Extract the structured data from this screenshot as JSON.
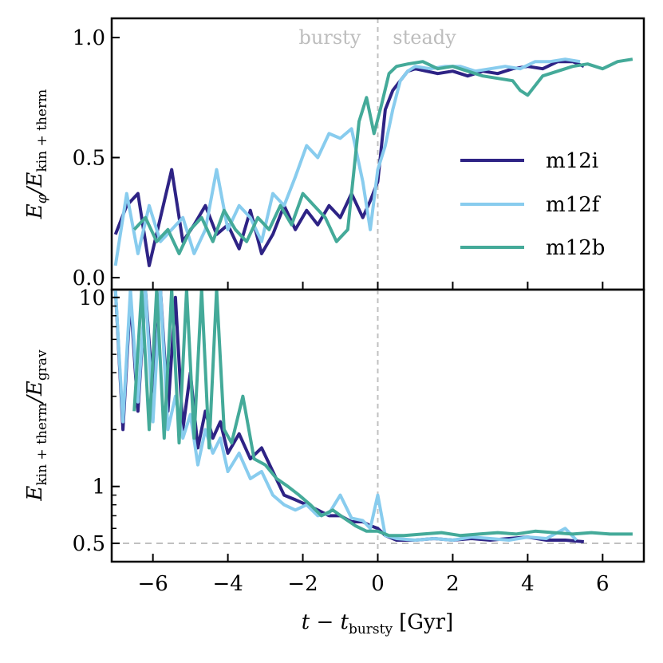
{
  "chart_data": [
    {
      "type": "line",
      "panel": "top",
      "ylabel_main": "E",
      "ylabel_sub1": "φ",
      "ylabel_slash": "/E",
      "ylabel_sub2": "kin + therm",
      "xlim": [
        -7.1,
        7.1
      ],
      "ylim": [
        -0.05,
        1.08
      ],
      "yscale": "linear",
      "yticks": [
        0.0,
        0.5,
        1.0
      ],
      "ytick_labels": [
        "0.0",
        "0.5",
        "1.0"
      ],
      "annotations": [
        {
          "text": "bursty",
          "x": -0.45,
          "y": 1.0
        },
        {
          "text": "steady",
          "x": 0.4,
          "y": 1.0
        }
      ],
      "vline_x": 0,
      "legend": {
        "placement": "right",
        "entries": [
          "m12i",
          "m12f",
          "m12b"
        ]
      },
      "series": [
        {
          "name": "m12i",
          "color": "#2e2385",
          "x": [
            -7.0,
            -6.7,
            -6.4,
            -6.1,
            -5.8,
            -5.5,
            -5.2,
            -4.9,
            -4.6,
            -4.3,
            -4.0,
            -3.7,
            -3.4,
            -3.1,
            -2.8,
            -2.5,
            -2.2,
            -1.9,
            -1.6,
            -1.3,
            -1.0,
            -0.7,
            -0.4,
            -0.2,
            0.0,
            0.2,
            0.4,
            0.6,
            0.8,
            1.0,
            1.3,
            1.6,
            2.0,
            2.4,
            2.8,
            3.2,
            3.6,
            4.0,
            4.4,
            4.8,
            5.2,
            5.5
          ],
          "values": [
            0.18,
            0.3,
            0.35,
            0.05,
            0.25,
            0.45,
            0.15,
            0.22,
            0.3,
            0.18,
            0.22,
            0.12,
            0.28,
            0.1,
            0.18,
            0.3,
            0.2,
            0.28,
            0.22,
            0.3,
            0.25,
            0.35,
            0.25,
            0.32,
            0.4,
            0.7,
            0.78,
            0.82,
            0.86,
            0.87,
            0.86,
            0.85,
            0.86,
            0.84,
            0.86,
            0.85,
            0.87,
            0.88,
            0.87,
            0.9,
            0.9,
            0.88
          ]
        },
        {
          "name": "m12f",
          "color": "#88ccee",
          "x": [
            -7.0,
            -6.7,
            -6.4,
            -6.1,
            -5.8,
            -5.5,
            -5.2,
            -4.9,
            -4.6,
            -4.3,
            -4.0,
            -3.7,
            -3.4,
            -3.1,
            -2.8,
            -2.5,
            -2.2,
            -1.9,
            -1.6,
            -1.3,
            -1.0,
            -0.7,
            -0.4,
            -0.2,
            0.0,
            0.2,
            0.4,
            0.6,
            0.8,
            1.0,
            1.4,
            1.8,
            2.2,
            2.6,
            3.0,
            3.4,
            3.8,
            4.2,
            4.6,
            5.0,
            5.4
          ],
          "values": [
            0.05,
            0.35,
            0.1,
            0.3,
            0.15,
            0.2,
            0.25,
            0.1,
            0.2,
            0.45,
            0.2,
            0.3,
            0.25,
            0.15,
            0.35,
            0.3,
            0.42,
            0.55,
            0.5,
            0.6,
            0.58,
            0.62,
            0.4,
            0.2,
            0.45,
            0.55,
            0.7,
            0.82,
            0.86,
            0.88,
            0.87,
            0.88,
            0.88,
            0.86,
            0.87,
            0.88,
            0.87,
            0.9,
            0.9,
            0.91,
            0.9
          ]
        },
        {
          "name": "m12b",
          "color": "#44aa99",
          "x": [
            -6.5,
            -6.2,
            -5.9,
            -5.6,
            -5.3,
            -5.0,
            -4.7,
            -4.4,
            -4.1,
            -3.8,
            -3.5,
            -3.2,
            -2.9,
            -2.6,
            -2.3,
            -2.0,
            -1.7,
            -1.4,
            -1.1,
            -0.8,
            -0.5,
            -0.3,
            -0.1,
            0.1,
            0.3,
            0.5,
            0.8,
            1.2,
            1.6,
            2.0,
            2.4,
            2.8,
            3.2,
            3.6,
            3.8,
            4.0,
            4.4,
            4.8,
            5.2,
            5.6,
            6.0,
            6.4,
            6.8
          ],
          "values": [
            0.2,
            0.25,
            0.15,
            0.2,
            0.1,
            0.2,
            0.25,
            0.15,
            0.28,
            0.2,
            0.15,
            0.25,
            0.2,
            0.3,
            0.22,
            0.35,
            0.3,
            0.25,
            0.15,
            0.2,
            0.65,
            0.75,
            0.6,
            0.72,
            0.85,
            0.88,
            0.89,
            0.9,
            0.87,
            0.88,
            0.86,
            0.84,
            0.83,
            0.82,
            0.78,
            0.76,
            0.84,
            0.86,
            0.88,
            0.89,
            0.87,
            0.9,
            0.91
          ]
        }
      ]
    },
    {
      "type": "line",
      "panel": "bottom",
      "ylabel_main": "E",
      "ylabel_sub1": "kin + therm",
      "ylabel_slash": "/E",
      "ylabel_sub2": "grav",
      "xlabel_main": "t − t",
      "xlabel_sub": "bursty",
      "xlabel_unit": "[Gyr]",
      "xlim": [
        -7.1,
        7.1
      ],
      "ylim": [
        0.4,
        11.0
      ],
      "yscale": "log",
      "yticks": [
        0.5,
        1,
        10
      ],
      "ytick_labels": [
        "0.5",
        "1",
        "10"
      ],
      "xticks": [
        -6,
        -4,
        -2,
        0,
        2,
        4,
        6
      ],
      "xtick_labels": [
        "−6",
        "−4",
        "−2",
        "0",
        "2",
        "4",
        "6"
      ],
      "hline_y": 0.5,
      "vline_x": 0,
      "series": [
        {
          "name": "m12i",
          "color": "#2e2385",
          "x": [
            -7.0,
            -6.8,
            -6.6,
            -6.4,
            -6.2,
            -6.0,
            -5.8,
            -5.6,
            -5.4,
            -5.2,
            -5.0,
            -4.8,
            -4.6,
            -4.4,
            -4.2,
            -4.0,
            -3.7,
            -3.4,
            -3.1,
            -2.8,
            -2.5,
            -2.2,
            -1.9,
            -1.6,
            -1.3,
            -1.0,
            -0.7,
            -0.4,
            -0.2,
            0.0,
            0.2,
            0.5,
            1.0,
            1.5,
            2.0,
            2.5,
            3.0,
            3.5,
            4.0,
            4.5,
            5.0,
            5.5
          ],
          "values": [
            11,
            2.0,
            10,
            2.5,
            11,
            3.0,
            11,
            2.5,
            10,
            2.0,
            4.0,
            1.6,
            2.5,
            1.8,
            2.2,
            1.5,
            1.9,
            1.4,
            1.6,
            1.2,
            0.9,
            0.85,
            0.8,
            0.75,
            0.7,
            0.7,
            0.65,
            0.65,
            0.62,
            0.6,
            0.55,
            0.52,
            0.52,
            0.53,
            0.52,
            0.53,
            0.52,
            0.53,
            0.54,
            0.52,
            0.52,
            0.51
          ]
        },
        {
          "name": "m12f",
          "color": "#88ccee",
          "x": [
            -7.0,
            -6.8,
            -6.6,
            -6.4,
            -6.2,
            -6.0,
            -5.8,
            -5.6,
            -5.4,
            -5.2,
            -5.0,
            -4.8,
            -4.6,
            -4.4,
            -4.2,
            -4.0,
            -3.7,
            -3.4,
            -3.1,
            -2.8,
            -2.5,
            -2.2,
            -1.9,
            -1.6,
            -1.3,
            -1.0,
            -0.7,
            -0.4,
            -0.2,
            0.0,
            0.2,
            0.5,
            1.0,
            1.5,
            2.0,
            2.5,
            3.0,
            3.5,
            4.0,
            4.5,
            5.0,
            5.3
          ],
          "values": [
            11,
            2.2,
            11,
            2.8,
            11,
            2.2,
            11,
            2.0,
            3.0,
            1.8,
            2.4,
            1.3,
            2.0,
            1.5,
            1.8,
            1.2,
            1.5,
            1.1,
            1.2,
            0.9,
            0.8,
            0.75,
            0.8,
            0.7,
            0.72,
            0.9,
            0.68,
            0.66,
            0.6,
            0.9,
            0.55,
            0.53,
            0.52,
            0.53,
            0.52,
            0.54,
            0.53,
            0.52,
            0.54,
            0.53,
            0.6,
            0.52
          ]
        },
        {
          "name": "m12b",
          "color": "#44aa99",
          "x": [
            -6.5,
            -6.3,
            -6.1,
            -5.9,
            -5.7,
            -5.5,
            -5.3,
            -5.1,
            -4.9,
            -4.7,
            -4.5,
            -4.3,
            -4.1,
            -3.9,
            -3.6,
            -3.3,
            -3.0,
            -2.7,
            -2.4,
            -2.1,
            -1.8,
            -1.5,
            -1.2,
            -0.9,
            -0.6,
            -0.3,
            0.0,
            0.3,
            0.7,
            1.2,
            1.7,
            2.2,
            2.7,
            3.2,
            3.7,
            4.2,
            4.7,
            5.2,
            5.7,
            6.2,
            6.8
          ],
          "values": [
            2.5,
            11,
            2.0,
            11,
            1.8,
            11,
            1.7,
            11,
            1.8,
            11,
            1.6,
            11,
            2.0,
            1.7,
            3.0,
            1.4,
            1.3,
            1.1,
            1.0,
            0.9,
            0.8,
            0.7,
            0.75,
            0.68,
            0.62,
            0.58,
            0.58,
            0.55,
            0.55,
            0.56,
            0.57,
            0.55,
            0.56,
            0.57,
            0.56,
            0.58,
            0.57,
            0.56,
            0.57,
            0.56,
            0.56
          ]
        }
      ]
    }
  ]
}
